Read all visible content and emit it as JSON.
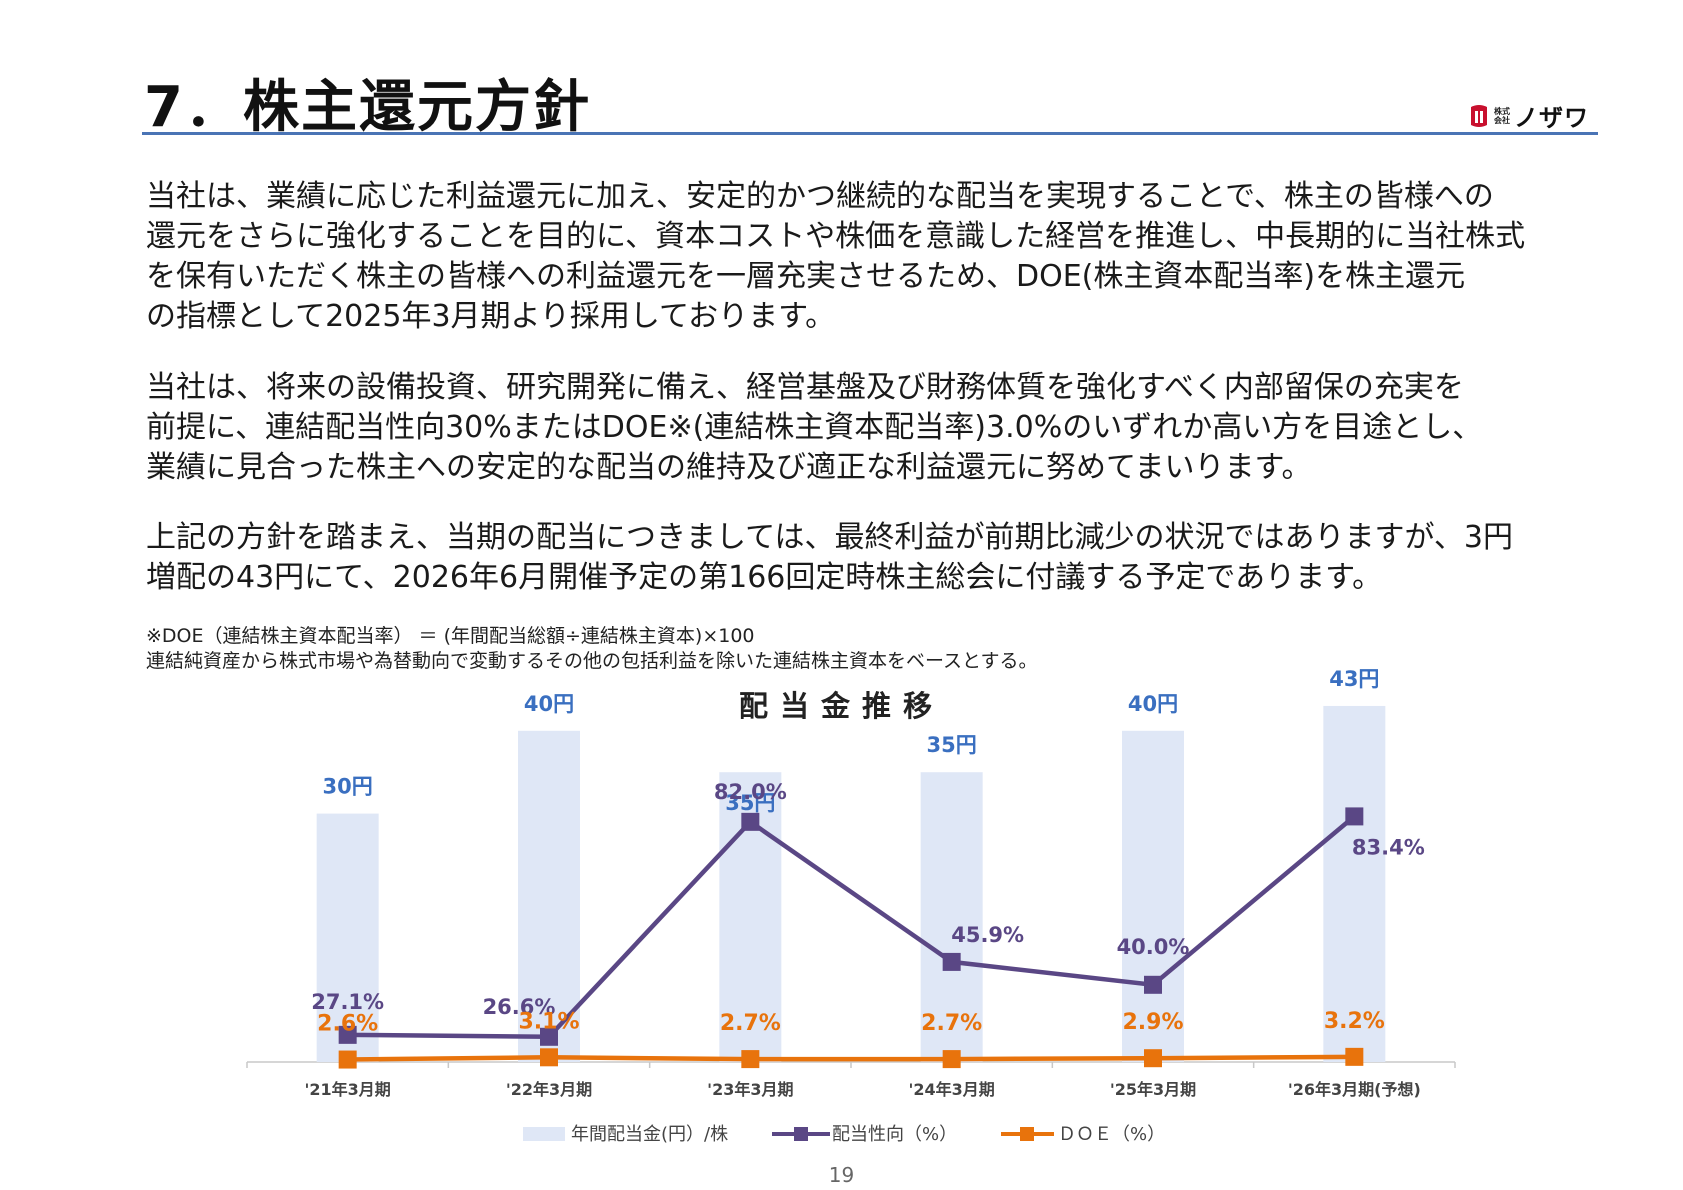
{
  "header": {
    "title": "7．株主還元方針",
    "logo_small_1": "株式",
    "logo_small_2": "会社",
    "logo_name": "ノザワ"
  },
  "paragraphs": [
    {
      "lines": [
        "当社は、業績に応じた利益還元に加え、安定的かつ継続的な配当を実現することで、株主の皆様への",
        "還元をさらに強化することを目的に、資本コストや株価を意識した経営を推進し、中長期的に当社株式",
        "を保有いただく株主の皆様への利益還元を一層充実させるため、DOE(株主資本配当率)を株主還元",
        "の指標として2025年3月期より採用しております。"
      ]
    },
    {
      "lines": [
        "当社は、将来の設備投資、研究開発に備え、経営基盤及び財務体質を強化すべく内部留保の充実を",
        "前提に、連結配当性向30%またはDOE※(連結株主資本配当率)3.0%のいずれか高い方を目途とし、",
        "業績に見合った株主への安定的な配当の維持及び適正な利益還元に努めてまいります。"
      ]
    },
    {
      "lines": [
        "上記の方針を踏まえ、当期の配当につきましては、最終利益が前期比減少の状況ではありますが、3円",
        "増配の43円にて、2026年6月開催予定の第166回定時株主総会に付議する予定であります。"
      ]
    }
  ],
  "notes": [
    "※DOE（連結株主資本配当率） ＝ (年間配当総額÷連結株主資本)×100",
    "連結純資産から株式市場や為替動向で変動するその他の包括利益を除いた連結株主資本をベースとする。"
  ],
  "chart_data": {
    "type": "bar",
    "title": "配当金推移",
    "categories": [
      "'21年3月期",
      "'22年3月期",
      "'23年3月期",
      "'24年3月期",
      "'25年3月期",
      "'26年3月期(予想)"
    ],
    "series": [
      {
        "name": "年間配当金(円）/株",
        "type": "bar",
        "values": [
          30,
          40,
          35,
          35,
          40,
          43
        ],
        "labels": [
          "30円",
          "40円",
          "35円",
          "35円",
          "40円",
          "43円"
        ],
        "color": "#dfe7f6",
        "label_color": "#3a6fc0"
      },
      {
        "name": "配当性向（%）",
        "type": "line",
        "values": [
          27.1,
          26.6,
          82.0,
          45.9,
          40.0,
          83.4
        ],
        "labels": [
          "27.1%",
          "26.6%",
          "82.0%",
          "45.9%",
          "40.0%",
          "83.4%"
        ],
        "color": "#5a4785"
      },
      {
        "name": "ＤＯＥ（%）",
        "type": "line",
        "values": [
          2.6,
          3.1,
          2.7,
          2.7,
          2.9,
          3.2
        ],
        "labels": [
          "2.6%",
          "3.1%",
          "2.7%",
          "2.7%",
          "2.9%",
          "3.2%"
        ],
        "color": "#e8730c"
      }
    ],
    "grid": false,
    "legend_position": "bottom"
  },
  "page_number": "19"
}
